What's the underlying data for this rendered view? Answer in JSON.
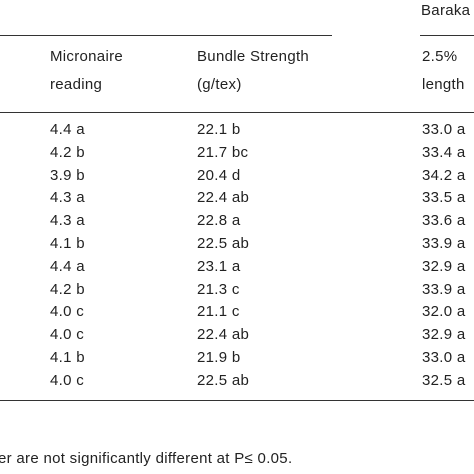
{
  "header": {
    "group": "Baraka",
    "columns": [
      [
        "Micronaire",
        "reading"
      ],
      [
        "Bundle Strength",
        "(g/tex)"
      ],
      [
        "2.5%",
        "length"
      ]
    ]
  },
  "table": {
    "rows": [
      [
        "4.4 a",
        "22.1 b",
        "33.0 a"
      ],
      [
        "4.2 b",
        "21.7 bc",
        "33.4 a"
      ],
      [
        "3.9 b",
        "20.4 d",
        "34.2 a"
      ],
      [
        "4.3 a",
        "22.4 ab",
        "33.5 a"
      ],
      [
        "4.3 a",
        "22.8 a",
        "33.6 a"
      ],
      [
        "4.1 b",
        "22.5 ab",
        "33.9 a"
      ],
      [
        "4.4 a",
        "23.1 a",
        "32.9 a"
      ],
      [
        "4.2 b",
        "21.3 c",
        "33.9 a"
      ],
      [
        "4.0 c",
        "21.1 c",
        "32.0 a"
      ],
      [
        "4.0 c",
        "22.4 ab",
        "32.9 a"
      ],
      [
        "4.1 b",
        "21.9 b",
        "33.0 a"
      ],
      [
        "4.0 c",
        "22.5 ab",
        "32.5 a"
      ]
    ]
  },
  "footnote": "er are not significantly different at P≤ 0.05."
}
